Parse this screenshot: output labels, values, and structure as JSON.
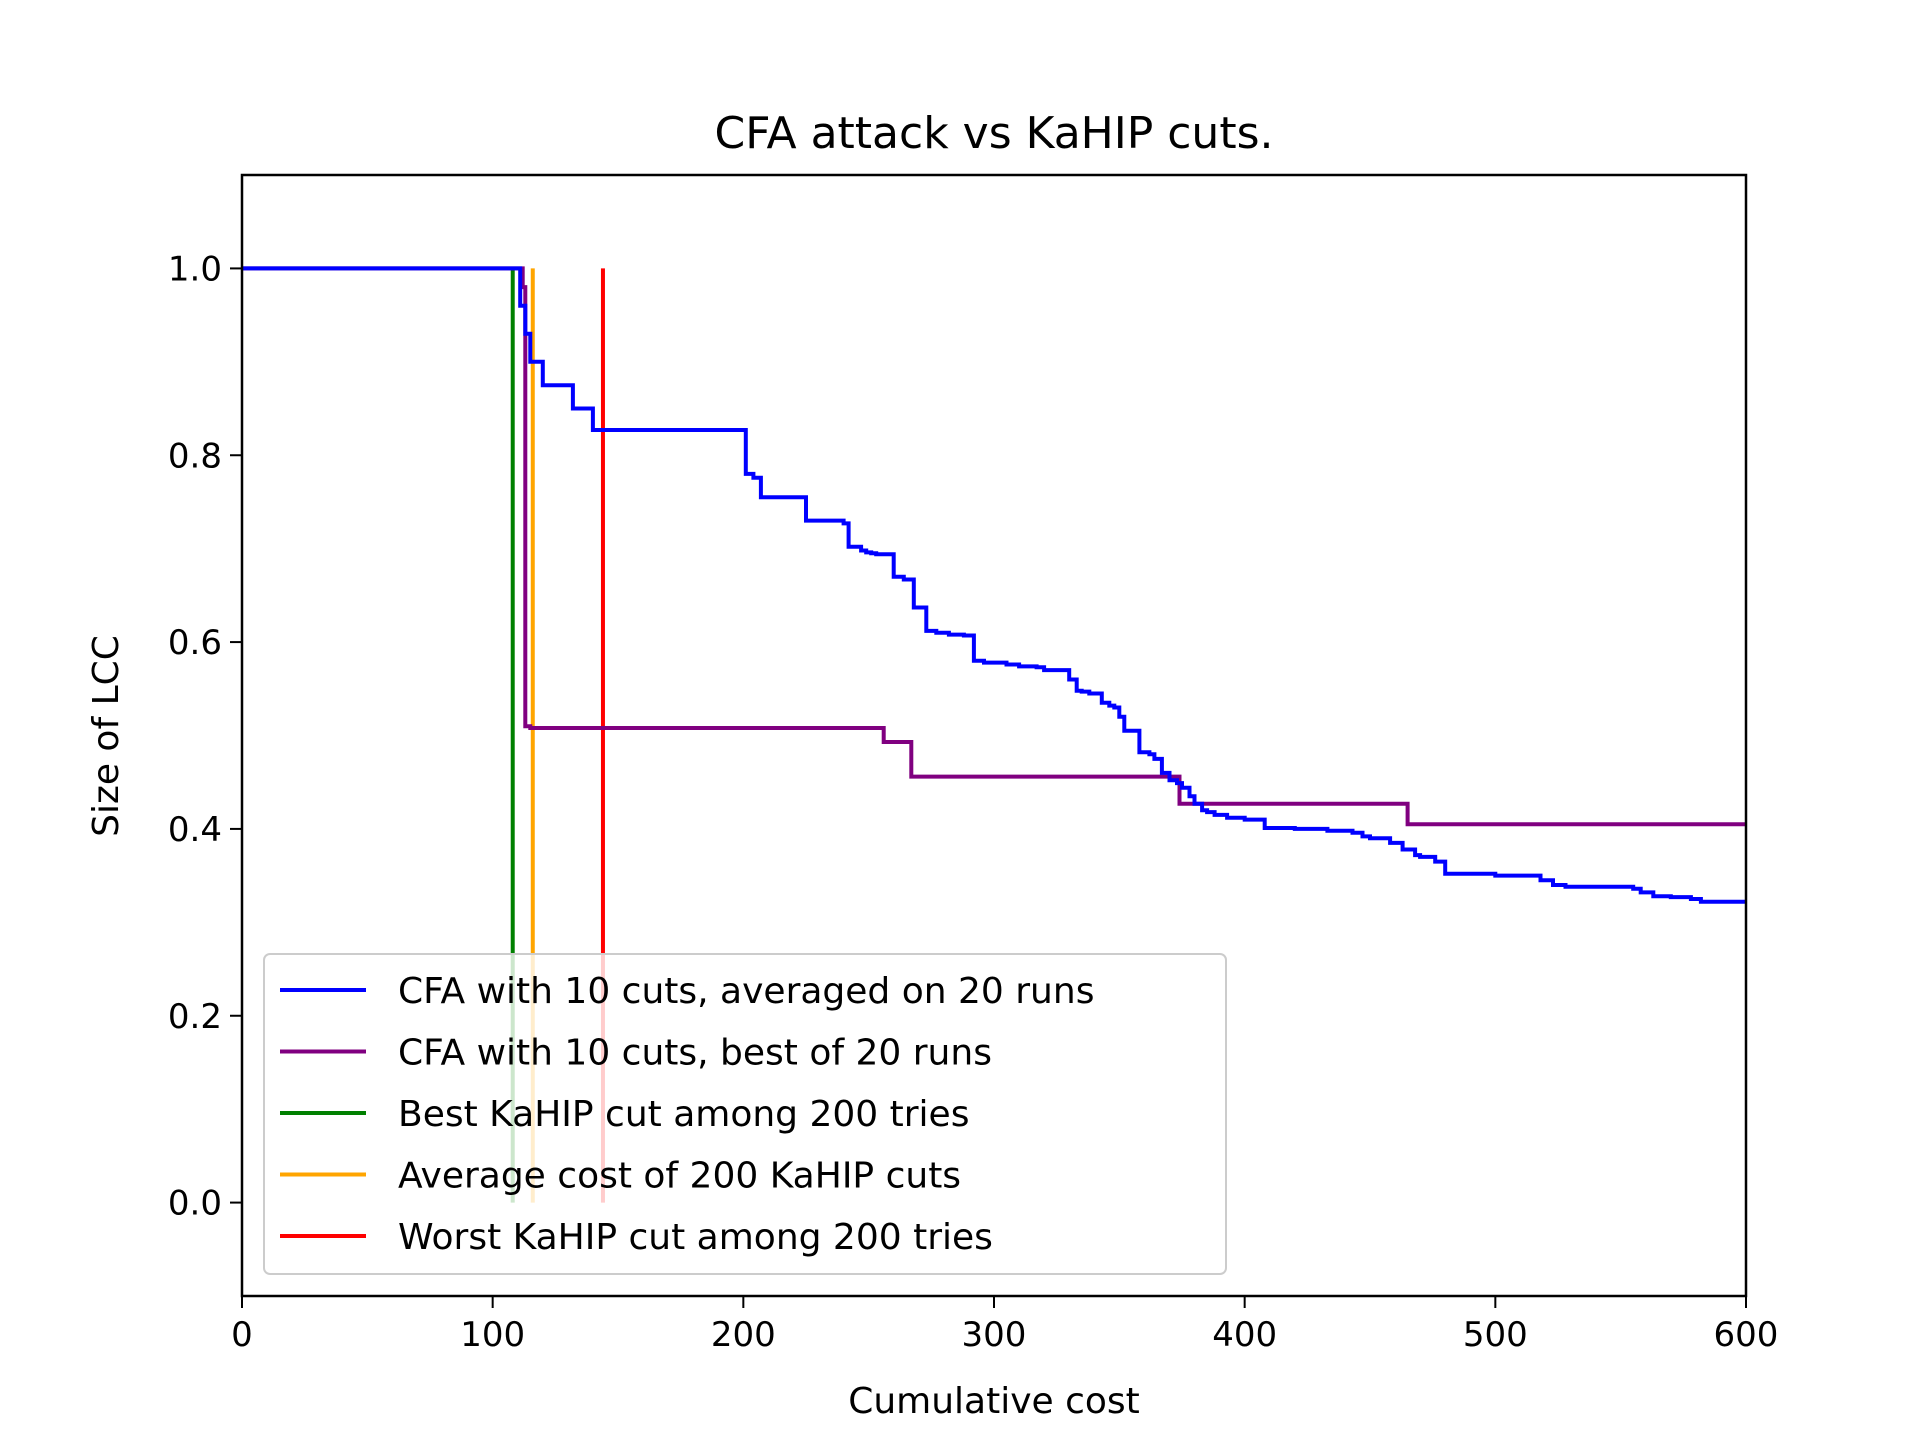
{
  "chart_data": {
    "type": "line",
    "title": "CFA attack vs KaHIP cuts.",
    "xlabel": "Cumulative cost",
    "ylabel": "Size of LCC",
    "xlim": [
      0,
      600
    ],
    "ylim": [
      -0.1,
      1.1
    ],
    "xticks": [
      0,
      100,
      200,
      300,
      400,
      500,
      600
    ],
    "yticks": [
      0.0,
      0.2,
      0.4,
      0.6,
      0.8,
      1.0
    ],
    "xtick_labels": [
      "0",
      "100",
      "200",
      "300",
      "400",
      "500",
      "600"
    ],
    "ytick_labels": [
      "0.0",
      "0.2",
      "0.4",
      "0.6",
      "0.8",
      "1.0"
    ],
    "legend_position": "lower-left",
    "series": [
      {
        "name": "CFA with 10 cuts, averaged on 20 runs",
        "color": "#0000ff",
        "type": "step",
        "x": [
          0,
          111,
          113,
          115,
          118,
          120,
          124,
          126,
          132,
          135,
          140,
          142,
          201,
          204,
          207,
          209,
          214,
          225,
          227,
          240,
          242,
          247,
          249,
          251,
          253,
          260,
          264,
          266,
          268,
          270,
          273,
          277,
          279,
          282,
          288,
          292,
          296,
          300,
          305,
          310,
          317,
          320,
          330,
          333,
          335,
          338,
          343,
          346,
          348,
          350,
          352,
          354,
          358,
          360,
          362,
          364,
          367,
          370,
          373,
          375,
          378,
          380,
          383,
          385,
          388,
          393,
          400,
          408,
          413,
          420,
          428,
          433,
          436,
          443,
          447,
          450,
          458,
          463,
          468,
          470,
          476,
          480,
          485,
          490,
          495,
          500,
          512,
          518,
          523,
          528,
          533,
          538,
          548,
          555,
          558,
          563,
          570,
          578,
          582,
          590,
          600
        ],
        "y": [
          1.0,
          0.96,
          0.93,
          0.9,
          0.9,
          0.875,
          0.875,
          0.875,
          0.85,
          0.85,
          0.827,
          0.827,
          0.78,
          0.776,
          0.755,
          0.755,
          0.755,
          0.73,
          0.73,
          0.727,
          0.702,
          0.698,
          0.696,
          0.695,
          0.694,
          0.67,
          0.667,
          0.667,
          0.637,
          0.637,
          0.612,
          0.61,
          0.61,
          0.608,
          0.607,
          0.58,
          0.578,
          0.578,
          0.576,
          0.574,
          0.573,
          0.57,
          0.56,
          0.548,
          0.547,
          0.545,
          0.535,
          0.532,
          0.53,
          0.52,
          0.505,
          0.505,
          0.482,
          0.482,
          0.48,
          0.475,
          0.46,
          0.452,
          0.449,
          0.444,
          0.435,
          0.427,
          0.42,
          0.418,
          0.415,
          0.412,
          0.41,
          0.401,
          0.401,
          0.4,
          0.4,
          0.398,
          0.398,
          0.396,
          0.392,
          0.39,
          0.385,
          0.378,
          0.372,
          0.37,
          0.365,
          0.352,
          0.352,
          0.352,
          0.352,
          0.35,
          0.35,
          0.345,
          0.34,
          0.338,
          0.338,
          0.338,
          0.338,
          0.336,
          0.332,
          0.328,
          0.327,
          0.325,
          0.322,
          0.322,
          0.322
        ]
      },
      {
        "name": "CFA with 10 cuts, best of 20 runs",
        "color": "#800080",
        "type": "step",
        "x": [
          0,
          112,
          113,
          115,
          255,
          256,
          266,
          267,
          372,
          374,
          463,
          465,
          600
        ],
        "y": [
          1.0,
          0.98,
          0.51,
          0.508,
          0.508,
          0.493,
          0.493,
          0.456,
          0.456,
          0.427,
          0.427,
          0.405,
          0.405
        ]
      },
      {
        "name": "Best KaHIP cut among 200 tries",
        "color": "#008000",
        "type": "vline",
        "x_value": 108,
        "y_range": [
          0.0,
          1.0
        ]
      },
      {
        "name": "Average cost of 200 KaHIP cuts",
        "color": "#ffa500",
        "type": "vline",
        "x_value": 116,
        "y_range": [
          0.0,
          1.0
        ]
      },
      {
        "name": "Worst KaHIP cut among 200 tries",
        "color": "#ff0000",
        "type": "vline",
        "x_value": 144,
        "y_range": [
          0.0,
          1.0
        ]
      }
    ]
  }
}
